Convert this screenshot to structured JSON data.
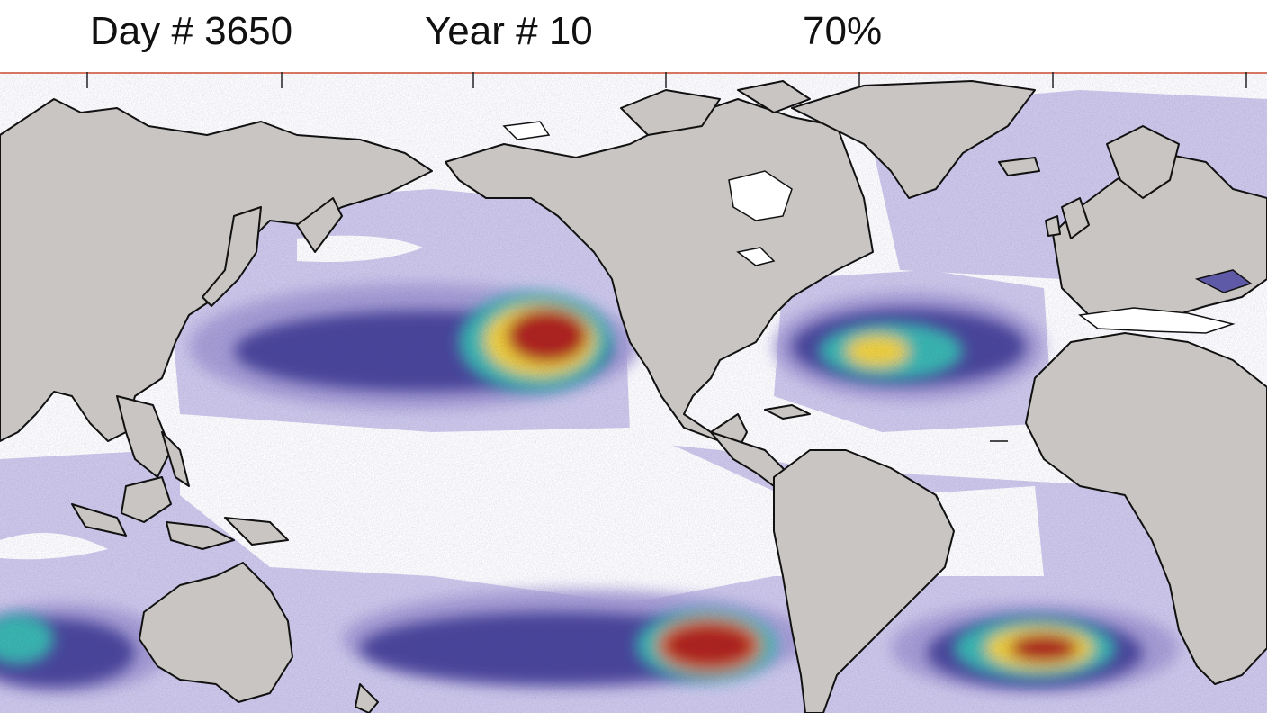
{
  "header": {
    "day": "Day # 3650",
    "year": "Year # 10",
    "percent": "70%"
  },
  "map": {
    "land_color": "#c8c5c2",
    "ocean_color": "#ffffff",
    "density_colors": [
      "#cdc8ea",
      "#a69dd4",
      "#5f5aa8",
      "#3f3a8c",
      "#39b7b0",
      "#8cc63f",
      "#f2d33b",
      "#e8742a",
      "#b0231c"
    ],
    "frame_color": "#e07a5f"
  }
}
